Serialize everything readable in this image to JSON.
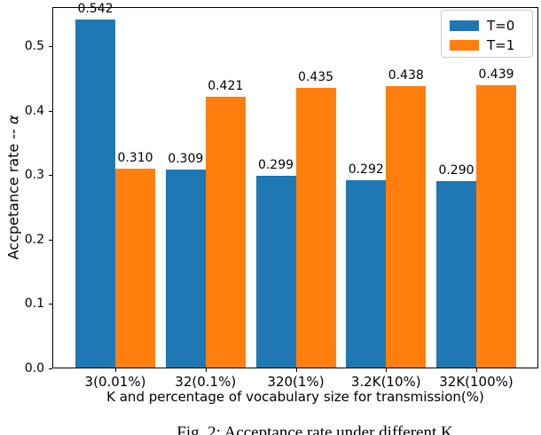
{
  "figure": {
    "caption": "Fig. 2: Acceptance rate under different K"
  },
  "chart_data": {
    "type": "bar",
    "title": "",
    "xlabel": "K and percentage of vocabulary size for transmission(%)",
    "ylabel": "Accpetance rate -- α",
    "ylabel_text": "Accpetance rate -- ",
    "ylabel_symbol": "α",
    "categories": [
      "3(0.01%)",
      "32(0.1%)",
      "320(1%)",
      "3.2K(10%)",
      "32K(100%)"
    ],
    "series": [
      {
        "name": "T=0",
        "color": "#1f77b4",
        "values": [
          0.542,
          0.309,
          0.299,
          0.292,
          0.29
        ]
      },
      {
        "name": "T=1",
        "color": "#ff7f0e",
        "values": [
          0.31,
          0.421,
          0.435,
          0.438,
          0.439
        ]
      }
    ],
    "bar_value_labels": [
      [
        "0.542",
        "0.309",
        "0.299",
        "0.292",
        "0.290"
      ],
      [
        "0.310",
        "0.421",
        "0.435",
        "0.438",
        "0.439"
      ]
    ],
    "yticks": [
      "0.0",
      "0.1",
      "0.2",
      "0.3",
      "0.4",
      "0.5"
    ],
    "ylim": [
      0,
      0.5606
    ],
    "grid": false,
    "legend": {
      "position": "upper right",
      "entries": [
        "T=0",
        "T=1"
      ]
    }
  }
}
